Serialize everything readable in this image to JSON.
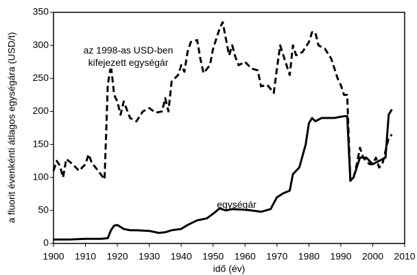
{
  "chart_data": {
    "type": "line",
    "ylabel": "a fluorit évenkénti átlagos egységára (USD/t)",
    "xlabel": "idő (év)",
    "xlim": [
      1900,
      2010
    ],
    "xticks": [
      1900,
      1910,
      1920,
      1930,
      1940,
      1950,
      1960,
      1970,
      1980,
      1990,
      2000,
      2010
    ],
    "ylim": [
      0,
      350
    ],
    "yticks": [
      0,
      50,
      100,
      150,
      200,
      250,
      300,
      350
    ],
    "grid": false,
    "series": [
      {
        "name": "egységár",
        "color": "#000000",
        "dash": false,
        "x": [
          1900,
          1905,
          1910,
          1915,
          1917,
          1918,
          1919,
          1920,
          1922,
          1924,
          1926,
          1930,
          1933,
          1935,
          1937,
          1940,
          1942,
          1945,
          1948,
          1950,
          1952,
          1954,
          1956,
          1960,
          1962,
          1965,
          1968,
          1970,
          1972,
          1974,
          1975,
          1977,
          1979,
          1980,
          1981,
          1982,
          1984,
          1988,
          1990,
          1992,
          1993,
          1994,
          1996,
          1998,
          2000,
          2002,
          2004,
          2005,
          2006
        ],
        "values": [
          6,
          6,
          7,
          7,
          8,
          20,
          27,
          28,
          22,
          20,
          20,
          19,
          16,
          17,
          20,
          22,
          28,
          35,
          38,
          45,
          53,
          50,
          52,
          51,
          50,
          48,
          52,
          70,
          76,
          80,
          105,
          115,
          150,
          182,
          190,
          185,
          190,
          190,
          192,
          193,
          95,
          100,
          130,
          130,
          120,
          125,
          130,
          195,
          203
        ]
      },
      {
        "name": "az 1998-as USD-ben kifejezett egységár",
        "color": "#000000",
        "dash": true,
        "x": [
          1900,
          1901,
          1902,
          1903,
          1904,
          1906,
          1908,
          1910,
          1911,
          1912,
          1914,
          1916,
          1917,
          1918,
          1919,
          1920,
          1921,
          1922,
          1924,
          1926,
          1928,
          1930,
          1932,
          1934,
          1935,
          1936,
          1937,
          1939,
          1940,
          1941,
          1942,
          1943,
          1945,
          1946,
          1947,
          1949,
          1950,
          1952,
          1953,
          1954,
          1955,
          1956,
          1957,
          1958,
          1960,
          1962,
          1964,
          1965,
          1967,
          1969,
          1970,
          1971,
          1972,
          1973,
          1974,
          1975,
          1976,
          1978,
          1980,
          1981,
          1982,
          1983,
          1985,
          1987,
          1989,
          1990,
          1991,
          1992,
          1993,
          1994,
          1995,
          1996,
          1997,
          1999,
          2000,
          2001,
          2002,
          2003,
          2004,
          2005,
          2006
        ],
        "values": [
          110,
          125,
          118,
          100,
          128,
          120,
          110,
          120,
          135,
          122,
          110,
          97,
          240,
          270,
          225,
          215,
          195,
          215,
          190,
          185,
          200,
          205,
          198,
          200,
          220,
          200,
          245,
          255,
          270,
          260,
          290,
          305,
          308,
          280,
          258,
          270,
          295,
          325,
          335,
          310,
          285,
          300,
          282,
          270,
          275,
          265,
          262,
          238,
          240,
          228,
          265,
          300,
          285,
          270,
          255,
          300,
          285,
          290,
          305,
          320,
          320,
          300,
          295,
          280,
          250,
          240,
          225,
          225,
          95,
          100,
          120,
          145,
          130,
          120,
          120,
          130,
          115,
          120,
          140,
          160,
          165
        ]
      }
    ]
  }
}
